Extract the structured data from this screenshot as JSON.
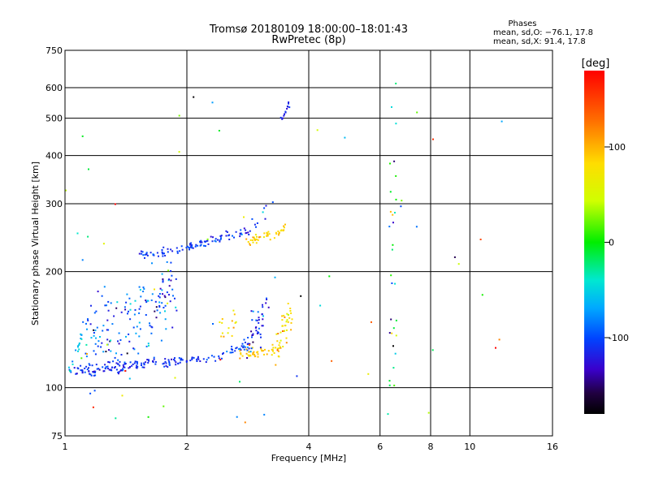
{
  "chart_data": {
    "type": "scatter",
    "title": "Tromsø 20180109 18:00:00–18:01:43",
    "subtitle": "RwPretec (8p)",
    "xlabel": "Frequency [MHz]",
    "ylabel": "Stationary phase Virtual Height [km]",
    "x_scale": "log",
    "y_scale": "log",
    "xlim": [
      1,
      16
    ],
    "ylim": [
      75,
      750
    ],
    "x_ticks": [
      1,
      2,
      4,
      6,
      8,
      10,
      16
    ],
    "x_tick_labels": [
      "1",
      "2",
      "4",
      "6",
      "8",
      "10",
      "16"
    ],
    "y_ticks": [
      75,
      100,
      200,
      300,
      400,
      500,
      600,
      750
    ],
    "y_tick_labels": [
      "75",
      "100",
      "200",
      "300",
      "400",
      "500",
      "600",
      "750"
    ],
    "grid": true,
    "phase_stats": {
      "header": "Phases",
      "line_o": "mean, sd,O: −76.1, 17.8",
      "line_x": "mean, sd,X:  91.4, 17.8"
    },
    "colorbar": {
      "unit": "[deg]",
      "min": -180,
      "max": 180,
      "ticks": [
        100,
        0,
        -100
      ],
      "tick_labels": [
        "100",
        "0",
        "-100"
      ]
    },
    "clusters": [
      {
        "f0": 1.05,
        "f1": 1.9,
        "h0": 110,
        "h1": 118,
        "n": 130,
        "phase": -110,
        "sd": 12,
        "jitter": 2
      },
      {
        "f0": 1.9,
        "f1": 2.5,
        "h0": 117,
        "h1": 121,
        "n": 35,
        "phase": -105,
        "sd": 10,
        "jitter": 1.5
      },
      {
        "f0": 2.5,
        "f1": 2.85,
        "h0": 121,
        "h1": 132,
        "n": 25,
        "phase": -100,
        "sd": 15,
        "jitter": 2
      },
      {
        "f0": 2.7,
        "f1": 3.3,
        "h0": 122,
        "h1": 125,
        "n": 40,
        "phase": 95,
        "sd": 10,
        "jitter": 2
      },
      {
        "f0": 3.3,
        "f1": 3.65,
        "h0": 126,
        "h1": 160,
        "n": 45,
        "phase": 90,
        "sd": 22,
        "jitter": 8
      },
      {
        "f0": 1.02,
        "f1": 1.1,
        "h0": 110,
        "h1": 135,
        "n": 20,
        "phase": -60,
        "sd": 20,
        "jitter": 3
      },
      {
        "f0": 1.1,
        "f1": 1.9,
        "h0": 125,
        "h1": 185,
        "n": 160,
        "phase": -95,
        "sd": 28,
        "jitter": 18
      },
      {
        "f0": 2.4,
        "f1": 2.7,
        "h0": 140,
        "h1": 155,
        "n": 15,
        "phase": 80,
        "sd": 15,
        "jitter": 6
      },
      {
        "f0": 2.8,
        "f1": 3.2,
        "h0": 125,
        "h1": 165,
        "n": 45,
        "phase": -110,
        "sd": 18,
        "jitter": 10
      },
      {
        "f0": 1.5,
        "f1": 1.9,
        "h0": 220,
        "h1": 228,
        "n": 35,
        "phase": -110,
        "sd": 12,
        "jitter": 3
      },
      {
        "f0": 1.9,
        "f1": 2.8,
        "h0": 228,
        "h1": 255,
        "n": 65,
        "phase": -105,
        "sd": 14,
        "jitter": 3
      },
      {
        "f0": 2.8,
        "f1": 3.2,
        "h0": 238,
        "h1": 250,
        "n": 30,
        "phase": 95,
        "sd": 12,
        "jitter": 3
      },
      {
        "f0": 3.2,
        "f1": 3.5,
        "h0": 245,
        "h1": 260,
        "n": 15,
        "phase": 90,
        "sd": 10,
        "jitter": 3
      },
      {
        "f0": 2.8,
        "f1": 3.3,
        "h0": 255,
        "h1": 300,
        "n": 12,
        "phase": -110,
        "sd": 15,
        "jitter": 6
      },
      {
        "f0": 3.4,
        "f1": 3.6,
        "h0": 490,
        "h1": 550,
        "n": 14,
        "phase": -115,
        "sd": 10,
        "jitter": 6
      },
      {
        "f0": 6.3,
        "f1": 6.6,
        "h0": 100,
        "h1": 650,
        "n": 26,
        "phase": 40,
        "sd": 90,
        "jitter": 0
      },
      {
        "f0": 1.0,
        "f1": 12,
        "h0": 80,
        "h1": 640,
        "n": 70,
        "phase": 0,
        "sd": 100,
        "jitter": 0
      }
    ]
  }
}
